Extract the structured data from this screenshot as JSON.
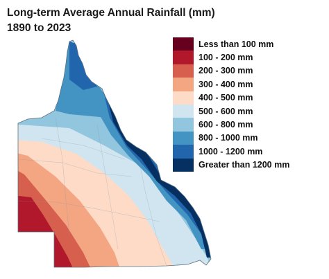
{
  "title_line1": "Long-term Average Annual Rainfall (mm)",
  "title_line2": "1890 to 2023",
  "legend": [
    {
      "label": "Less than 100 mm",
      "color": "#67001f"
    },
    {
      "label": "100 - 200 mm",
      "color": "#b2182b"
    },
    {
      "label": "200 - 300 mm",
      "color": "#d6604d"
    },
    {
      "label": "300 - 400 mm",
      "color": "#f4a582"
    },
    {
      "label": "400 - 500 mm",
      "color": "#fddbc7"
    },
    {
      "label": "500 - 600 mm",
      "color": "#d1e5f0"
    },
    {
      "label": "600 - 800 mm",
      "color": "#92c5de"
    },
    {
      "label": "800 - 1000 mm",
      "color": "#4393c3"
    },
    {
      "label": "1000 - 1200 mm",
      "color": "#2166ac"
    },
    {
      "label": "Greater than 1200  mm",
      "color": "#053061"
    }
  ]
}
